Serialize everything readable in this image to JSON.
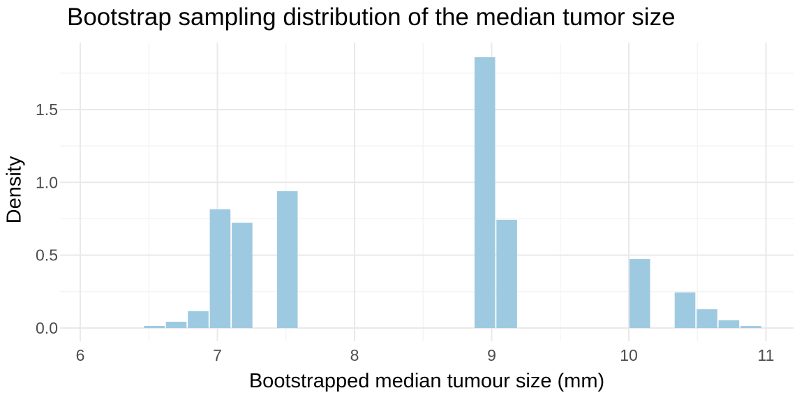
{
  "chart_data": {
    "type": "bar",
    "subtype": "histogram",
    "title": "Bootstrap sampling distribution of the median tumor size",
    "xlabel": "Bootstrapped median tumour size (mm)",
    "ylabel": "Density",
    "x_ticks": [
      6,
      7,
      8,
      9,
      10,
      11
    ],
    "x_tick_labels": [
      "6",
      "7",
      "8",
      "9",
      "10",
      "11"
    ],
    "x_minor_ticks": [
      6.5,
      7.5,
      8.5,
      9.5,
      10.5
    ],
    "y_ticks": [
      0.0,
      0.5,
      1.0,
      1.5
    ],
    "y_tick_labels": [
      "0.0",
      "0.5",
      "1.0",
      "1.5"
    ],
    "y_minor_ticks": [
      0.25,
      0.75,
      1.25,
      1.75
    ],
    "xlim": [
      5.85,
      11.2
    ],
    "ylim": [
      -0.09,
      1.96
    ],
    "grid": true,
    "legend": null,
    "bin_width": 0.161,
    "bins": [
      {
        "x": 6.54,
        "density": 0.015
      },
      {
        "x": 6.7,
        "density": 0.043
      },
      {
        "x": 6.86,
        "density": 0.116
      },
      {
        "x": 7.02,
        "density": 0.815
      },
      {
        "x": 7.18,
        "density": 0.723
      },
      {
        "x": 7.51,
        "density": 0.939
      },
      {
        "x": 8.95,
        "density": 1.859
      },
      {
        "x": 9.11,
        "density": 0.743
      },
      {
        "x": 10.08,
        "density": 0.474
      },
      {
        "x": 10.41,
        "density": 0.244
      },
      {
        "x": 10.57,
        "density": 0.129
      },
      {
        "x": 10.73,
        "density": 0.053
      },
      {
        "x": 10.89,
        "density": 0.014
      }
    ]
  },
  "colors": {
    "bar_fill": "#9ECAE1",
    "grid_major": "#E9E9E9",
    "grid_minor": "#F3F3F3",
    "axis_text": "#4D4D4D",
    "title_text": "#000000",
    "background": "#FFFFFF"
  }
}
